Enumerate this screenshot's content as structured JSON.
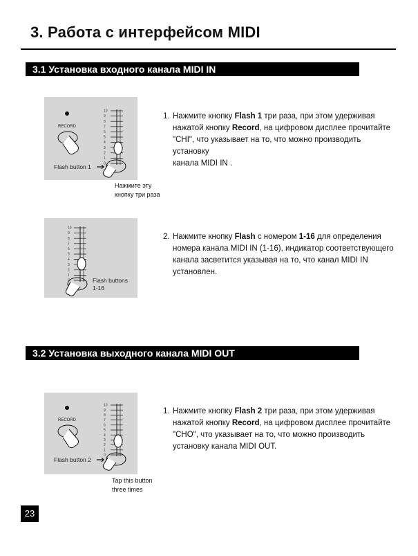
{
  "header": {
    "title": "3. Работа с интерфейсом MIDI"
  },
  "section1": {
    "title": "3.1  Установка входного канала MIDI IN",
    "fig1": {
      "record_label": "RECORD",
      "flash_label": "Flash button 1",
      "caption_line1": "Нажмите эту",
      "caption_line2": "кнопку три раза"
    },
    "fig2": {
      "flash_label_line1": "Flash buttons",
      "flash_label_line2": "1-16"
    },
    "step1": {
      "num": "1.",
      "t1": "Нажмите кнопку ",
      "b1": "Flash 1",
      "t2": " три раза, при этом удерживая",
      "t3": "нажатой кнопку ",
      "b2": "Record",
      "t4": ", на цифровом дисплее прочитайте",
      "t5": "\"CHI\", что указывает на то, что можно производить установку",
      "t6": "канала MIDI IN ."
    },
    "step2": {
      "num": "2.",
      "t1": "Нажмите кнопку ",
      "b1": "Flash",
      "t2": " с номером ",
      "b2": "1-16",
      "t3": " для определения",
      "t4": "номера канала MIDI IN  (1-16), индикатор соответствующего",
      "t5": "канала засветится указывая на то, что канал MIDI IN",
      "t6": "установлен."
    }
  },
  "section2": {
    "title": "3.2 Установка выходного канала MIDI OUT",
    "fig3": {
      "record_label": "RECORD",
      "flash_label": "Flash button 2",
      "caption_line1": "Tap this button",
      "caption_line2": "three times"
    },
    "step1": {
      "num": "1.",
      "t1": "Нажмите кнопку ",
      "b1": "Flash 2",
      "t2": " три раза, при этом удерживая",
      "t3": "нажатой кнопку ",
      "b2": "Record",
      "t4": ", на цифровом дисплее прочитайте",
      "t5": "\"CHO\", что указывает на то, что можно производить",
      "t6": "установку канала MIDI OUT."
    }
  },
  "fader_scale": [
    "10",
    "9",
    "8",
    "7",
    "6",
    "5",
    "4",
    "3",
    "2",
    "1",
    "0"
  ],
  "footer": {
    "page_number": "23"
  }
}
